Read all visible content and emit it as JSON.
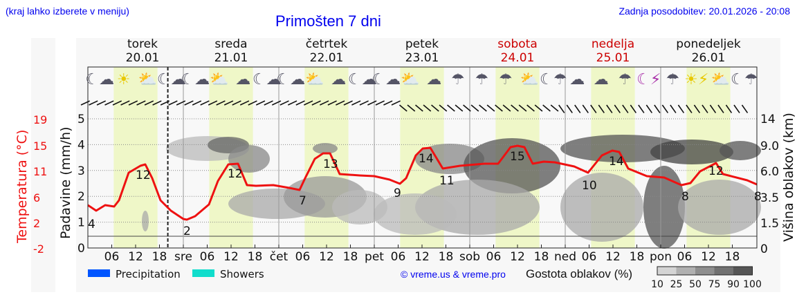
{
  "header": {
    "hint": "(kraj lahko izberete v meniju)",
    "title": "Primošten 7 dni",
    "last_update": "Zadnja posodobitev: 20.01.2026 - 20:08"
  },
  "days": [
    {
      "name": "torek",
      "date": "20.01",
      "weekend": false
    },
    {
      "name": "sreda",
      "date": "21.01",
      "weekend": false
    },
    {
      "name": "četrtek",
      "date": "22.01",
      "weekend": false
    },
    {
      "name": "petek",
      "date": "23.01",
      "weekend": false
    },
    {
      "name": "sobota",
      "date": "24.01",
      "weekend": true
    },
    {
      "name": "nedelja",
      "date": "25.01",
      "weekend": true
    },
    {
      "name": "ponedeljek",
      "date": "26.01",
      "weekend": false
    }
  ],
  "colors": {
    "temperature": "#ee1111",
    "precipitation": "#0055ff",
    "showers": "#11ddcc",
    "daylight": "#eff7c8",
    "weekend_text": "#cc0000",
    "link": "#0000ee"
  },
  "axes": {
    "left_temp_label": "Temperatura (°C)",
    "left_temp_ticks": [
      "19",
      "15",
      "11",
      "6",
      "2",
      "-2"
    ],
    "left_precip_label": "Padavine (mm/h)",
    "left_precip_ticks": [
      "5",
      "4",
      "3",
      "2",
      "1",
      "0"
    ],
    "right_label": "Višina oblakov (km)",
    "right_ticks": [
      "14",
      "9.0",
      "6.0",
      "3.5",
      "1.5",
      "0"
    ],
    "x_ticks": [
      "06",
      "12",
      "18",
      "sre",
      "06",
      "12",
      "18",
      "čet",
      "06",
      "12",
      "18",
      "pet",
      "06",
      "12",
      "18",
      "sob",
      "06",
      "12",
      "18",
      "ned",
      "06",
      "12",
      "18",
      "pon",
      "06",
      "12",
      "18"
    ]
  },
  "icons": [
    "moon-cloud",
    "sun",
    "sun-cloud",
    "moon-cloud",
    "moon-cloud",
    "sun-cloud",
    "cloud",
    "moon-cloud",
    "moon-cloud",
    "sun-cloud",
    "cloud",
    "moon-cloud",
    "moon-cloud",
    "sun-cloud",
    "cloud",
    "cloud-rain",
    "cloud-rain",
    "cloud-rain",
    "sun-cloud-rain",
    "moon-cloud-rain",
    "cloud",
    "cloud",
    "cloud-rain",
    "moon-thunder",
    "cloud-rain",
    "sun-thunder",
    "sun-cloud-rain",
    "moon-cloud-rain"
  ],
  "legend": {
    "precipitation": "Precipitation",
    "showers": "Showers",
    "copyright": "© vreme.us & vreme.pro",
    "cloud_density": "Gostota oblakov (%)",
    "cloud_scale": [
      "10",
      "25",
      "50",
      "75",
      "90",
      "100"
    ]
  },
  "chart_data": {
    "type": "line",
    "title": "Primošten 7 dni",
    "xlabel": "",
    "ylabel": "Temperatura (°C) / Padavine (mm/h)",
    "y2label": "Višina oblakov (km)",
    "ylim": [
      0,
      5
    ],
    "temp_range": [
      -2,
      19
    ],
    "grid": true,
    "series": [
      {
        "name": "Temperature (°C)",
        "x_hours": [
          0,
          6,
          12,
          15,
          18,
          21,
          30,
          36,
          42,
          45,
          48,
          60,
          66,
          72,
          78,
          87,
          93,
          108,
          114,
          120,
          129,
          138,
          144,
          150,
          162,
          168,
          174,
          186,
          192,
          198,
          210,
          216,
          222,
          234,
          240,
          246,
          258,
          264,
          270
        ],
        "values": [
          4,
          5,
          5,
          10,
          12,
          12.5,
          5,
          2,
          2,
          3,
          4,
          12,
          9,
          9,
          8.5,
          8,
          13,
          9.5,
          9,
          9,
          9,
          14,
          11,
          10.5,
          11,
          11.5,
          15,
          11,
          10.5,
          10,
          10,
          14,
          10,
          9.5,
          9,
          8,
          11.5,
          11,
          9
        ]
      },
      {
        "name": "Precipitation (mm/h)",
        "x_hours": [
          190,
          191,
          198,
          200,
          204,
          207,
          210,
          214,
          225,
          226,
          234,
          236,
          238,
          240,
          242,
          246,
          250,
          252,
          254,
          256,
          258,
          260,
          262,
          264,
          266,
          268,
          270
        ],
        "values": [
          0.2,
          0.2,
          1.3,
          1.8,
          2.4,
          2.0,
          1.5,
          0.9,
          0.5,
          0.4,
          0.6,
          0.9,
          0.9,
          0.3,
          0.2,
          0.9,
          1.5,
          2.9,
          3.8,
          3.3,
          2.7,
          2.6,
          2.7,
          1.6,
          1.3,
          0.7,
          1.7
        ]
      },
      {
        "name": "Showers (mm/h)",
        "x_hours": [
          201,
          204,
          207,
          226,
          236,
          250,
          252,
          254,
          256,
          258,
          260,
          262
        ],
        "values": [
          0.3,
          1.2,
          0.6,
          0.3,
          0.3,
          1.0,
          0.8,
          0.8,
          0.8,
          1.0,
          0.8,
          0.8
        ]
      }
    ],
    "temperature_labels": [
      {
        "text": "4",
        "x_hour": 0
      },
      {
        "text": "12",
        "x_hour": 14
      },
      {
        "text": "2",
        "x_hour": 24
      },
      {
        "text": "12",
        "x_hour": 38
      },
      {
        "text": "7",
        "x_hour": 53
      },
      {
        "text": "13",
        "x_hour": 62
      },
      {
        "text": "9",
        "x_hour": 78
      },
      {
        "text": "14",
        "x_hour": 85
      },
      {
        "text": "11",
        "x_hour": 89
      },
      {
        "text": "15",
        "x_hour": 110
      },
      {
        "text": "10",
        "x_hour": 126
      },
      {
        "text": "14",
        "x_hour": 134
      },
      {
        "text": "8",
        "x_hour": 150
      },
      {
        "text": "12",
        "x_hour": 158
      },
      {
        "text": "8",
        "x_hour": 167
      }
    ],
    "legend": [
      "Precipitation",
      "Showers"
    ],
    "legend_position": "bottom"
  }
}
